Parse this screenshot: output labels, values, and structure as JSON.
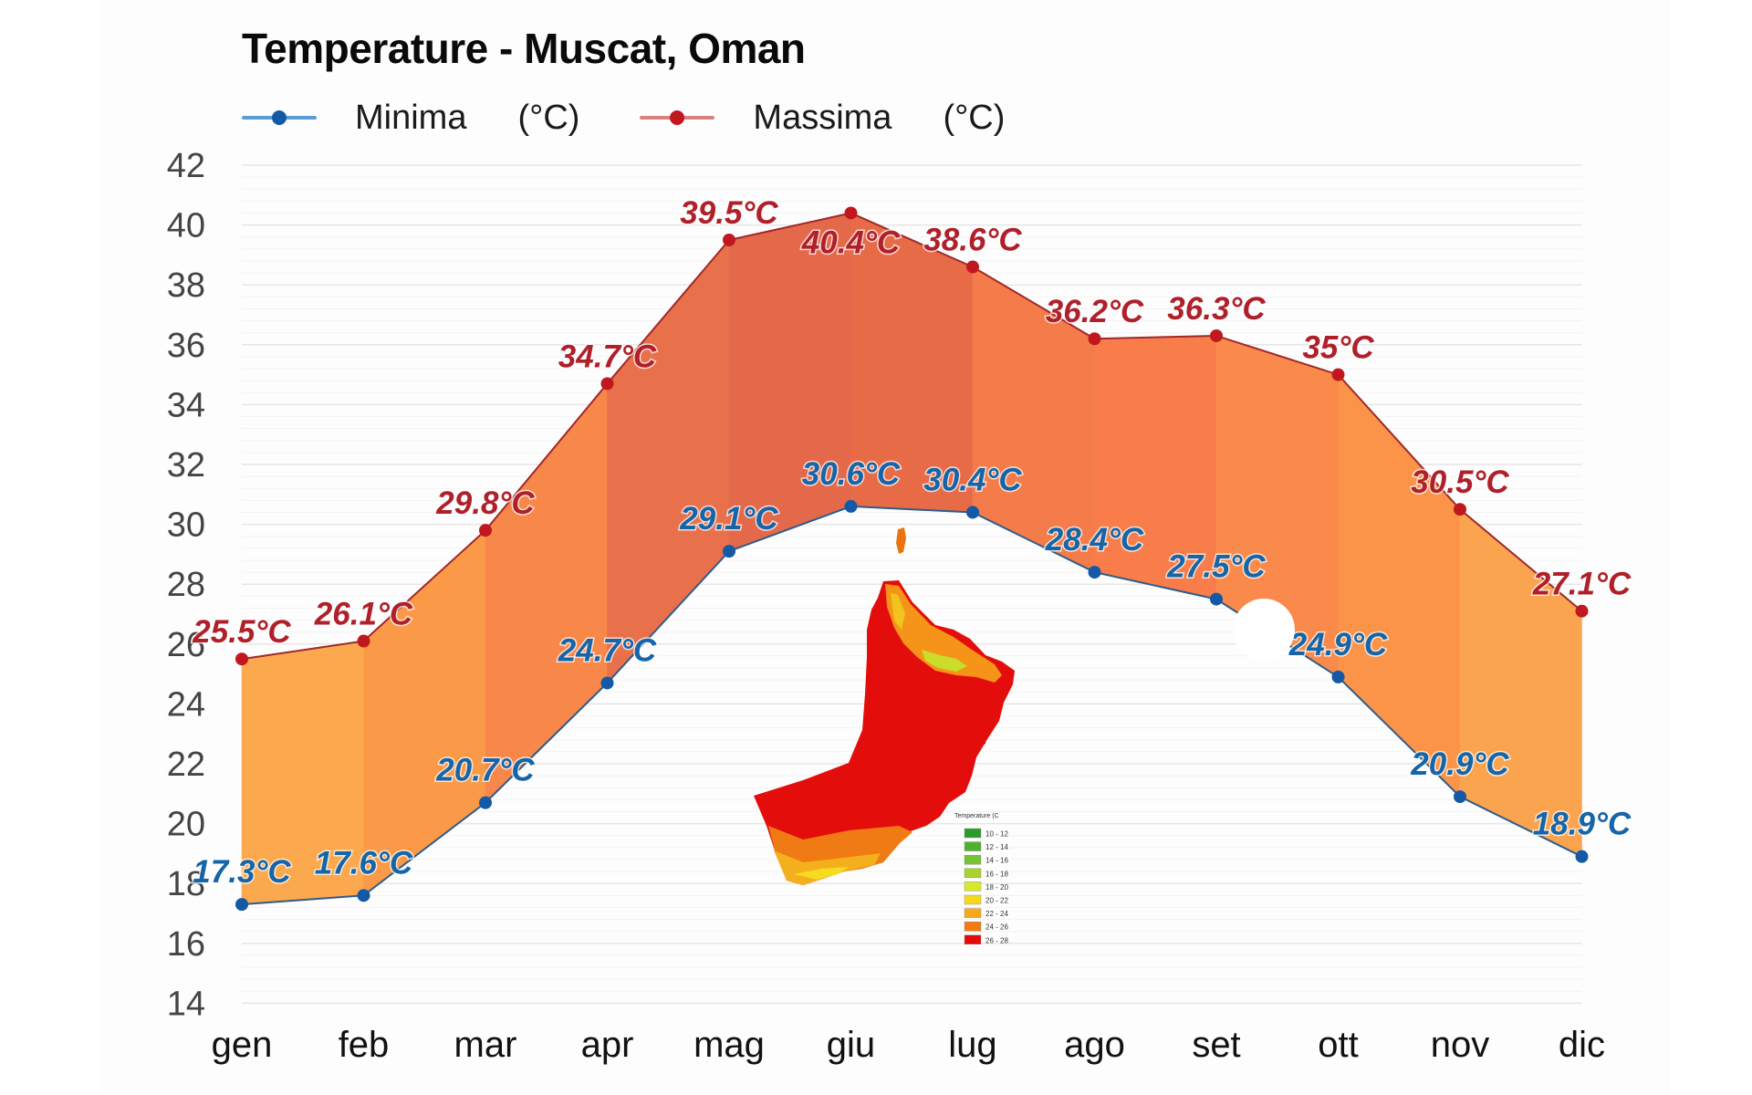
{
  "title": "Temperature - Muscat, Oman",
  "legend": {
    "min": {
      "label": "Minima",
      "unit": "(°C)",
      "color": "#1F6BB0"
    },
    "max": {
      "label": "Massima",
      "unit": "(°C)",
      "color": "#C62828"
    }
  },
  "chart_data": {
    "type": "line",
    "title": "Temperature - Muscat, Oman",
    "xlabel": "",
    "ylabel": "",
    "categories": [
      "gen",
      "feb",
      "mar",
      "apr",
      "mag",
      "giu",
      "lug",
      "ago",
      "set",
      "ott",
      "nov",
      "dic"
    ],
    "series": [
      {
        "name": "Minima (°C)",
        "color": "#1F6BB0",
        "values": [
          17.3,
          17.6,
          20.7,
          24.7,
          29.1,
          30.6,
          30.4,
          28.4,
          27.5,
          24.9,
          20.9,
          18.9
        ],
        "labels": [
          "17.3°C",
          "17.6°C",
          "20.7°C",
          "24.7°C",
          "29.1°C",
          "30.6°C",
          "30.4°C",
          "28.4°C",
          "27.5°C",
          "24.9°C",
          "20.9°C",
          "18.9°C"
        ]
      },
      {
        "name": "Massima (°C)",
        "color": "#C62828",
        "values": [
          25.5,
          26.1,
          29.8,
          34.7,
          39.5,
          40.4,
          38.6,
          36.2,
          36.3,
          35.0,
          30.5,
          27.1
        ],
        "labels": [
          "25.5°C",
          "26.1°C",
          "29.8°C",
          "34.7°C",
          "39.5°C",
          "40.4°C",
          "38.6°C",
          "36.2°C",
          "36.3°C",
          "35°C",
          "30.5°C",
          "27.1°C"
        ]
      }
    ],
    "band_fill_colors": [
      "#FBA84E",
      "#FA9A48",
      "#F8874A",
      "#E8704A",
      "#E4694A",
      "#E86B48",
      "#F47B4A",
      "#F87D4A",
      "#FA8A4C",
      "#FB9448",
      "#FBA450"
    ],
    "yticks": [
      14,
      16,
      18,
      20,
      22,
      24,
      26,
      28,
      30,
      32,
      34,
      36,
      38,
      40,
      42
    ],
    "ylim": [
      14,
      42
    ],
    "grid": true,
    "legend_position": "top-left"
  },
  "inset_map": {
    "name": "Oman temperature map",
    "legend_title": "Temperature (C",
    "bins": [
      {
        "label": "10 - 12",
        "color": "#2E9A2E"
      },
      {
        "label": "12 - 14",
        "color": "#4FB030"
      },
      {
        "label": "14 - 16",
        "color": "#76C232"
      },
      {
        "label": "16 - 18",
        "color": "#A6D42C"
      },
      {
        "label": "18 - 20",
        "color": "#D8E82A"
      },
      {
        "label": "20 - 22",
        "color": "#F5D91E"
      },
      {
        "label": "22 - 24",
        "color": "#F7A91C"
      },
      {
        "label": "24 - 26",
        "color": "#F47A14"
      },
      {
        "label": "26 - 28",
        "color": "#E40B0B"
      }
    ]
  }
}
